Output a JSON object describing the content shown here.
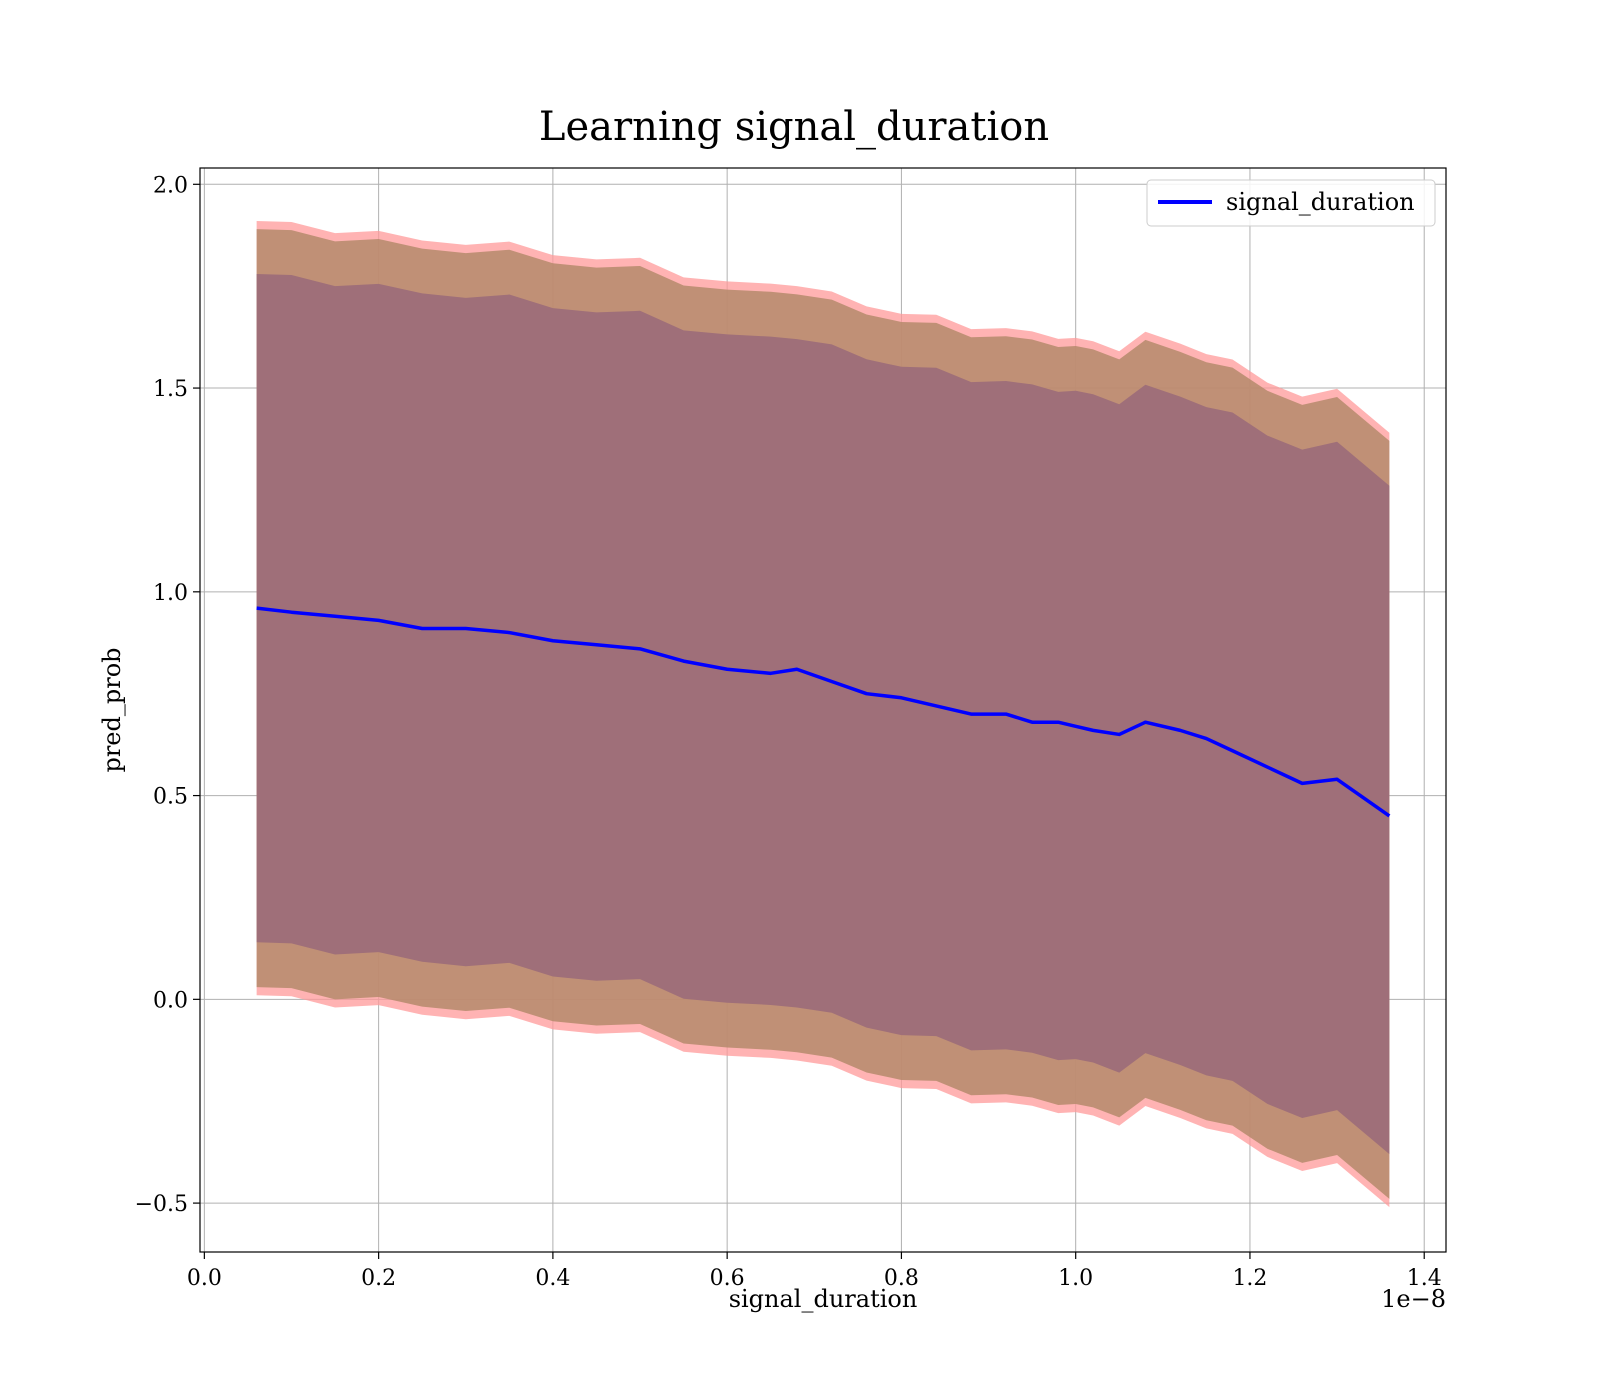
{
  "chart_data": {
    "type": "line",
    "title": "Learning signal_duration",
    "xlabel": "signal_duration",
    "ylabel": "pred_prob",
    "x_offset_label": "1e−8",
    "xlim": [
      -0.005,
      1.425
    ],
    "ylim": [
      -0.62,
      2.04
    ],
    "x_ticks": [
      0.0,
      0.2,
      0.4,
      0.6,
      0.8,
      1.0,
      1.2,
      1.4
    ],
    "x_tick_labels": [
      "0.0",
      "0.2",
      "0.4",
      "0.6",
      "0.8",
      "1.0",
      "1.2",
      "1.4"
    ],
    "y_ticks": [
      -0.5,
      0.0,
      0.5,
      1.0,
      1.5,
      2.0
    ],
    "y_tick_labels": [
      "−0.5",
      "0.0",
      "0.5",
      "1.0",
      "1.5",
      "2.0"
    ],
    "grid": true,
    "legend": {
      "position": "top-right",
      "entries": [
        "signal_duration"
      ]
    },
    "colors": {
      "line": "#0000ff",
      "outer_band": "#ff9999",
      "middle_band": "#b58a6b",
      "inner_band": "#9f6f79"
    },
    "x": [
      0.06,
      0.1,
      0.15,
      0.2,
      0.25,
      0.3,
      0.35,
      0.4,
      0.45,
      0.5,
      0.55,
      0.6,
      0.65,
      0.68,
      0.72,
      0.76,
      0.8,
      0.84,
      0.88,
      0.92,
      0.95,
      0.98,
      1.0,
      1.02,
      1.05,
      1.08,
      1.12,
      1.15,
      1.18,
      1.22,
      1.26,
      1.3,
      1.36
    ],
    "series": [
      {
        "name": "signal_duration",
        "values": [
          0.96,
          0.95,
          0.94,
          0.93,
          0.91,
          0.91,
          0.9,
          0.88,
          0.87,
          0.86,
          0.83,
          0.81,
          0.8,
          0.81,
          0.78,
          0.75,
          0.74,
          0.72,
          0.7,
          0.7,
          0.68,
          0.68,
          0.67,
          0.66,
          0.65,
          0.68,
          0.66,
          0.64,
          0.61,
          0.57,
          0.53,
          0.54,
          0.45
        ]
      }
    ],
    "bands": [
      {
        "upper_offset": 0.95,
        "lower_offset": -0.95
      },
      {
        "upper_offset": 0.93,
        "lower_offset": -0.93
      },
      {
        "upper_offset": 0.82,
        "lower_offset": -0.82
      }
    ]
  }
}
